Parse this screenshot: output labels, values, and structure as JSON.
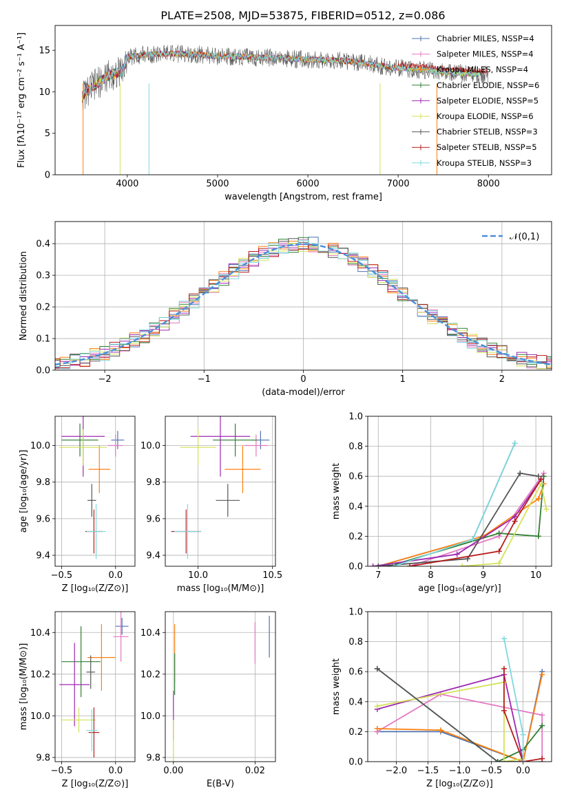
{
  "title": "PLATE=2508, MJD=53875, FIBERID=0512, z=0.086",
  "legend_colors": [
    "#4c72b0",
    "#e377c2",
    "#ff7f0e",
    "#2ca02c",
    "#9467bd",
    "#bcbd22",
    "#555555",
    "#b22222",
    "#76d7d7"
  ],
  "chart_data": [
    {
      "type": "line",
      "title": "PLATE=2508, MJD=53875, FIBERID=0512, z=0.086",
      "xlabel": "wavelength [Angstrom, rest frame]",
      "ylabel": "Flux [fλ10⁻¹⁷ erg cm⁻² s⁻¹ A⁻¹]",
      "xlim": [
        3200,
        8700
      ],
      "ylim": [
        0,
        18
      ],
      "xticks": [
        "4000",
        "5000",
        "6000",
        "7000",
        "8000"
      ],
      "yticks": [
        "0",
        "5",
        "10",
        "15"
      ],
      "grid": false,
      "legend": "upper right",
      "series": [
        {
          "name": "Chabrier MILES, N_SSP=4",
          "color": "#4c72b0"
        },
        {
          "name": "Salpeter MILES, N_SSP=4",
          "color": "#e377c2"
        },
        {
          "name": "Kroupa MILES, N_SSP=4",
          "color": "#ff7f0e"
        },
        {
          "name": "Chabrier ELODIE, N_SSP=6",
          "color": "#2e7d32"
        },
        {
          "name": "Salpeter ELODIE, N_SSP=5",
          "color": "#9c27b0"
        },
        {
          "name": "Kroupa ELODIE, N_SSP=6",
          "color": "#d4e157"
        },
        {
          "name": "Chabrier STELIB, N_SSP=3",
          "color": "#555555"
        },
        {
          "name": "Salpeter STELIB, N_SSP=5",
          "color": "#b71c1c"
        },
        {
          "name": "Kroupa STELIB, N_SSP=3",
          "color": "#7fd8dc"
        }
      ],
      "continuum": {
        "x": [
          3500,
          3600,
          3800,
          3950,
          4000,
          4200,
          4500,
          4800,
          5000,
          5300,
          5600,
          6000,
          6300,
          6600,
          6900,
          7200,
          7500,
          7800,
          8000
        ],
        "y": [
          9.5,
          10.5,
          12,
          12.5,
          14.2,
          14.5,
          14.6,
          14.5,
          14.3,
          14.2,
          14.1,
          13.9,
          13.8,
          13.5,
          13,
          12.7,
          12.4,
          12.2,
          12
        ]
      }
    },
    {
      "type": "histogram",
      "xlabel": "(data-model)/error",
      "ylabel": "Normed distribution",
      "xlim": [
        -2.5,
        2.5
      ],
      "ylim": [
        0,
        0.47
      ],
      "xticks": [
        "−2",
        "−1",
        "0",
        "1",
        "2"
      ],
      "yticks": [
        "0.0",
        "0.1",
        "0.2",
        "0.3",
        "0.4"
      ],
      "grid": true,
      "legend": "upper right",
      "legend_label": "𝒩(0,1)",
      "reference_curve": "normal(0,1)"
    },
    {
      "type": "scatter",
      "xlabel": "Z [log₁₀(Z/Z⊙)]",
      "ylabel": "age  [log₁₀(age/yr)]",
      "xlim": [
        -0.56,
        0.18
      ],
      "ylim": [
        9.34,
        10.16
      ],
      "xticks": [
        "−0.5",
        "0.0"
      ],
      "yticks": [
        "9.4",
        "9.6",
        "9.8",
        "10.0"
      ],
      "grid": true,
      "points": [
        {
          "x": 0.02,
          "y": 10.03,
          "xerr": 0.06,
          "yerr": 0.05
        },
        {
          "x": 0.0,
          "y": 10.0,
          "xerr": 0.07,
          "yerr": 0.06
        },
        {
          "x": -0.15,
          "y": 9.87,
          "xerr": 0.1,
          "yerr": 0.13
        },
        {
          "x": -0.33,
          "y": 10.03,
          "xerr": 0.17,
          "yerr": 0.09
        },
        {
          "x": -0.3,
          "y": 10.05,
          "xerr": 0.2,
          "yerr": 0.22
        },
        {
          "x": -0.3,
          "y": 9.99,
          "xerr": 0.22,
          "yerr": 0.1
        },
        {
          "x": -0.22,
          "y": 9.7,
          "xerr": 0.04,
          "yerr": 0.09
        },
        {
          "x": -0.2,
          "y": 9.53,
          "xerr": 0.08,
          "yerr": 0.12
        },
        {
          "x": -0.18,
          "y": 9.53,
          "xerr": 0.09,
          "yerr": 0.15
        }
      ]
    },
    {
      "type": "scatter",
      "xlabel": "mass [log₁₀(M/M⊙)]",
      "xlim": [
        9.78,
        10.52
      ],
      "ylim": [
        9.34,
        10.16
      ],
      "xticks": [
        "10.0",
        "10.5"
      ],
      "yticks": [
        "9.4",
        "9.6",
        "9.8",
        "10.0"
      ],
      "grid": true,
      "points": [
        {
          "x": 10.42,
          "y": 10.03,
          "xerr": 0.06,
          "yerr": 0.05
        },
        {
          "x": 10.39,
          "y": 10.0,
          "xerr": 0.08,
          "yerr": 0.06
        },
        {
          "x": 10.3,
          "y": 9.87,
          "xerr": 0.12,
          "yerr": 0.13
        },
        {
          "x": 10.25,
          "y": 10.03,
          "xerr": 0.15,
          "yerr": 0.09
        },
        {
          "x": 10.15,
          "y": 10.05,
          "xerr": 0.2,
          "yerr": 0.22
        },
        {
          "x": 10.0,
          "y": 9.99,
          "xerr": 0.12,
          "yerr": 0.1
        },
        {
          "x": 10.2,
          "y": 9.7,
          "xerr": 0.08,
          "yerr": 0.09
        },
        {
          "x": 9.92,
          "y": 9.53,
          "xerr": 0.1,
          "yerr": 0.12
        },
        {
          "x": 9.93,
          "y": 9.53,
          "xerr": 0.09,
          "yerr": 0.15
        }
      ]
    },
    {
      "type": "line",
      "xlabel": "age  [log₁₀(age/yr)]",
      "ylabel": "mass weight",
      "xlim": [
        6.8,
        10.3
      ],
      "ylim": [
        0,
        1
      ],
      "xticks": [
        "7",
        "8",
        "9",
        "10"
      ],
      "yticks": [
        "0.0",
        "0.2",
        "0.4",
        "0.6",
        "0.8",
        "1.0"
      ],
      "grid": true,
      "series": [
        {
          "x": [
            7.0,
            8.8,
            9.6
          ],
          "y": [
            0.0,
            0.18,
            0.82
          ]
        },
        {
          "x": [
            7.6,
            9.3,
            10.15
          ],
          "y": [
            0.0,
            0.2,
            0.62
          ]
        },
        {
          "x": [
            7.0,
            9.0,
            10.05,
            10.15
          ],
          "y": [
            0.0,
            0.2,
            0.45,
            0.55
          ]
        },
        {
          "x": [
            7.2,
            9.3,
            10.05,
            10.15
          ],
          "y": [
            0.0,
            0.22,
            0.2,
            0.6
          ]
        },
        {
          "x": [
            6.9,
            8.5,
            9.6,
            10.1
          ],
          "y": [
            0.0,
            0.08,
            0.33,
            0.58
          ]
        },
        {
          "x": [
            8.6,
            9.3,
            10.1,
            10.2
          ],
          "y": [
            0.0,
            0.02,
            0.55,
            0.38
          ]
        },
        {
          "x": [
            7.0,
            8.7,
            9.7,
            10.05
          ],
          "y": [
            0.0,
            0.05,
            0.62,
            0.6
          ]
        },
        {
          "x": [
            7.6,
            9.3,
            9.6,
            10.1
          ],
          "y": [
            0.0,
            0.1,
            0.3,
            0.58
          ]
        },
        {
          "x": [
            7.3,
            8.8,
            9.6
          ],
          "y": [
            0.0,
            0.18,
            0.82
          ]
        }
      ]
    },
    {
      "type": "scatter",
      "xlabel": "Z [log₁₀(Z/Z⊙)]",
      "ylabel": "mass [log₁₀(M/M⊙)]",
      "xlim": [
        -0.56,
        0.18
      ],
      "ylim": [
        9.78,
        10.5
      ],
      "xticks": [
        "−0.5",
        "0.0"
      ],
      "yticks": [
        "9.8",
        "10.0",
        "10.2",
        "10.4"
      ],
      "grid": true,
      "points": [
        {
          "x": 0.06,
          "y": 10.43,
          "xerr": 0.06,
          "yerr": 0.04
        },
        {
          "x": 0.05,
          "y": 10.38,
          "xerr": 0.07,
          "yerr": 0.12
        },
        {
          "x": -0.13,
          "y": 10.28,
          "xerr": 0.13,
          "yerr": 0.16
        },
        {
          "x": -0.32,
          "y": 10.26,
          "xerr": 0.18,
          "yerr": 0.17
        },
        {
          "x": -0.38,
          "y": 10.15,
          "xerr": 0.14,
          "yerr": 0.2
        },
        {
          "x": -0.34,
          "y": 9.98,
          "xerr": 0.16,
          "yerr": 0.06
        },
        {
          "x": -0.23,
          "y": 10.21,
          "xerr": 0.04,
          "yerr": 0.08
        },
        {
          "x": -0.2,
          "y": 9.92,
          "xerr": 0.05,
          "yerr": 0.12
        },
        {
          "x": -0.22,
          "y": 9.93,
          "xerr": 0.05,
          "yerr": 0.1
        }
      ]
    },
    {
      "type": "scatter",
      "xlabel": "E(B-V)",
      "xlim": [
        -0.002,
        0.025
      ],
      "ylim": [
        9.78,
        10.5
      ],
      "xticks": [
        "0.00",
        "0.02"
      ],
      "yticks": [
        "9.8",
        "10.0",
        "10.2",
        "10.4"
      ],
      "grid": true,
      "points": [
        {
          "x": 0.0235,
          "y": 10.38,
          "yerr": 0.1
        },
        {
          "x": 0.02,
          "y": 10.35,
          "yerr": 0.1
        },
        {
          "x": 0.0003,
          "y": 10.3,
          "yerr": 0.14
        },
        {
          "x": 0.0003,
          "y": 10.2,
          "yerr": 0.1
        },
        {
          "x": 0.0,
          "y": 10.0,
          "yerr": 0.12
        },
        {
          "x": 0.0,
          "y": 9.88,
          "yerr": 0.1
        }
      ]
    },
    {
      "type": "line",
      "xlabel": "Z [log₁₀(Z/Z⊙)]",
      "ylabel": "mass weight",
      "xlim": [
        -2.45,
        0.45
      ],
      "ylim": [
        0,
        1
      ],
      "xticks": [
        "−2.0",
        "−1.5",
        "−1.0",
        "−0.5",
        "0.0"
      ],
      "yticks": [
        "0.0",
        "0.2",
        "0.4",
        "0.6",
        "0.8",
        "1.0"
      ],
      "grid": true,
      "series": [
        {
          "x": [
            -2.3,
            -1.3,
            0.0,
            0.3
          ],
          "y": [
            0.2,
            0.2,
            0.0,
            0.6
          ]
        },
        {
          "x": [
            -2.3,
            -1.3,
            0.3,
            0.3
          ],
          "y": [
            0.2,
            0.45,
            0.31,
            0.0
          ]
        },
        {
          "x": [
            -2.3,
            -1.3,
            0.0,
            0.3
          ],
          "y": [
            0.22,
            0.21,
            0.0,
            0.58
          ]
        },
        {
          "x": [
            -2.3,
            -0.4,
            0.0,
            0.3
          ],
          "y": [
            0.62,
            0.0,
            0.08,
            0.24
          ]
        },
        {
          "x": [
            -2.3,
            -0.3,
            0.0
          ],
          "y": [
            0.35,
            0.58,
            0.0
          ]
        },
        {
          "x": [
            -2.3,
            -0.3,
            -0.3,
            0.0
          ],
          "y": [
            0.37,
            0.53,
            0.0,
            0.02
          ]
        },
        {
          "x": [
            -2.3,
            -0.4,
            0.0
          ],
          "y": [
            0.62,
            0.0,
            0.0
          ]
        },
        {
          "x": [
            -0.3,
            -0.3,
            0.0,
            0.3
          ],
          "y": [
            0.62,
            0.34,
            0.0,
            0.02
          ]
        },
        {
          "x": [
            -0.3,
            0.0,
            0.0
          ],
          "y": [
            0.82,
            0.18,
            0.0
          ]
        }
      ]
    }
  ]
}
